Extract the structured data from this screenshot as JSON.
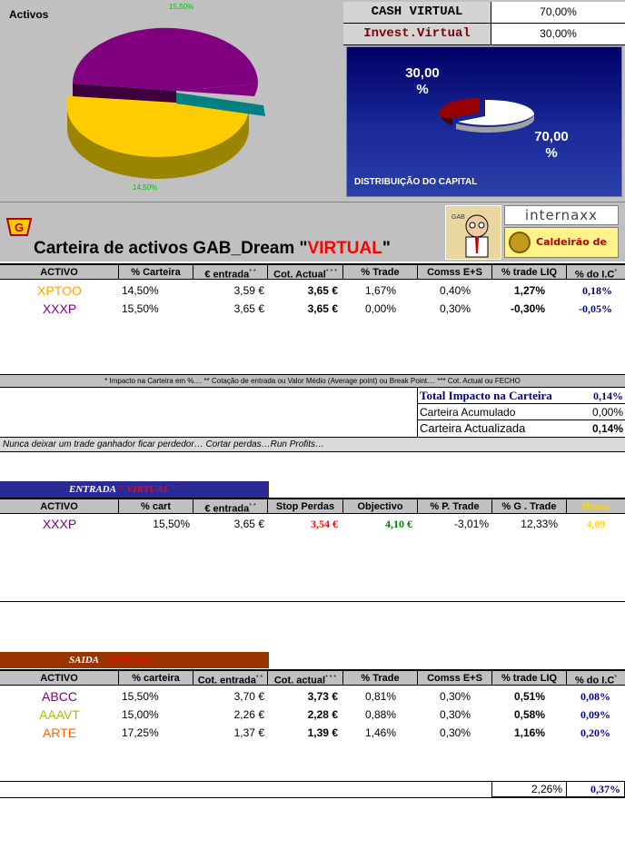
{
  "top_chart": {
    "title": "Activos",
    "label_top": "15,50%",
    "label_bottom": "14,50%"
  },
  "cash": {
    "rows": [
      {
        "label": "CASH VIRTUAL",
        "value": "70,00%",
        "label_color": "#000000"
      },
      {
        "label": "Invest.Virtual",
        "value": "30,00%",
        "label_color": "#800000"
      }
    ],
    "dist_pct_invest": "30,00 %",
    "dist_pct_cash": "70,00 %",
    "dist_caption": "DISTRIBUIÇÃO DO CAPITAL"
  },
  "header": {
    "title_prefix": "Carteira de activos GAB_Dream ",
    "title_quote_open": "\"",
    "title_virtual": "VIRTUAL",
    "title_quote_close": "\"",
    "internaxx": "internaxx",
    "caldeirao": "Caldeirão de Bolsa",
    "gab": "GAB"
  },
  "carteira": {
    "columns": [
      "ACTIVO",
      "% Carteira",
      "€  entrada",
      "Cot. Actual",
      "% Trade",
      "Comss E+S",
      "% trade LIQ",
      "% do I.C"
    ],
    "column_marks": [
      "",
      "",
      "* *",
      "* * *",
      "",
      "",
      "",
      "*"
    ],
    "rows": [
      {
        "activo": "XPTOO",
        "color": "#ffa500",
        "carteira": "14,50%",
        "entrada": "3,59 €",
        "cot": "3,65 €",
        "trade": "1,67%",
        "comss": "0,40%",
        "liq": "1,27%",
        "ic": "0,18%"
      },
      {
        "activo": "XXXP",
        "color": "#800080",
        "carteira": "15,50%",
        "entrada": "3,65 €",
        "cot": "3,65 €",
        "trade": "0,00%",
        "comss": "0,30%",
        "liq": "-0,30%",
        "ic": "-0,05%"
      }
    ]
  },
  "footnote": "* Impacto na Carteira  em %....      ** Cotação de entrada ou Valor Médio (Average point) ou Break Point....      *** Cot. Actual ou FECHO",
  "summary": [
    {
      "label": "Total Impacto na Carteira",
      "value": "0,14%"
    },
    {
      "label": "Carteira Acumulado",
      "value": "0,00%"
    },
    {
      "label": "Carteira Actualizada",
      "value": "0,14%"
    }
  ],
  "motto": "Nunca deixar um trade ganhador ficar perdedor… Cortar perdas…Run Profits…",
  "entrada": {
    "banner": "ENTRADA",
    "banner_quoted": "VIRTUAL",
    "columns": [
      "ACTIVO",
      "% cart",
      "€  entrada",
      "Stop Perdas",
      "Objectivo",
      "% P. Trade",
      "% G . Trade",
      "Risco"
    ],
    "column_marks": [
      "",
      "",
      "* *",
      "",
      "",
      "",
      "",
      ""
    ],
    "rows": [
      {
        "activo": "XXXP",
        "color": "#800080",
        "cart": "15,50%",
        "entrada": "3,65 €",
        "stop": "3,54 €",
        "objectivo": "4,10 €",
        "p_trade": "-3,01%",
        "g_trade": "12,33%",
        "risco": "4,09"
      }
    ]
  },
  "saida": {
    "banner": "SAIDA",
    "banner_quoted": "VIRTUAL",
    "columns": [
      "ACTIVO",
      "% carteira",
      "Cot. entrada",
      "Cot. actual",
      "% Trade",
      "Comss E+S",
      "% trade LIQ",
      "% do I.C"
    ],
    "column_marks": [
      "",
      "",
      "* *",
      "* * *",
      "",
      "",
      "",
      "*"
    ],
    "rows": [
      {
        "activo": "ABCC",
        "color": "#800080",
        "carteira": "15,50%",
        "entrada": "3,70 €",
        "cot": "3,73 €",
        "trade": "0,81%",
        "comss": "0,30%",
        "liq": "0,51%",
        "ic": "0,08%"
      },
      {
        "activo": "AAAVT",
        "color": "#99cc00",
        "carteira": "15,00%",
        "entrada": "2,26 €",
        "cot": "2,28 €",
        "trade": "0,88%",
        "comss": "0,30%",
        "liq": "0,58%",
        "ic": "0,09%"
      },
      {
        "activo": "ARTE",
        "color": "#ff6600",
        "carteira": "17,25%",
        "entrada": "1,37 €",
        "cot": "1,39 €",
        "trade": "1,46%",
        "comss": "0,30%",
        "liq": "1,16%",
        "ic": "0,20%"
      }
    ],
    "total_liq": "2,26%",
    "total_ic": "0,37%"
  },
  "colors": {
    "stop": "#ff0000",
    "objectivo": "#008000",
    "risco": "#ffd700",
    "navy": "#000080"
  }
}
